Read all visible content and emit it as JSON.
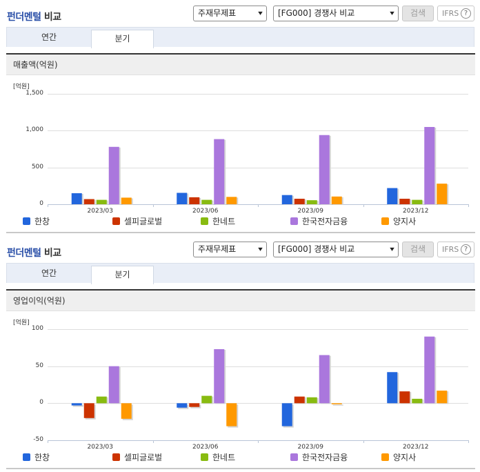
{
  "sections": [
    {
      "title_part1": "펀더멘털",
      "title_part2": "비교",
      "report_select": "주재무제표",
      "group_select": "[FG000] 경쟁사 비교",
      "search_label": "검색",
      "ifrs_label": "IFRS",
      "help_icon": "?",
      "tabs": [
        {
          "label": "연간",
          "active": false
        },
        {
          "label": "분기",
          "active": true
        }
      ],
      "metric_label": "매출액(억원)"
    },
    {
      "title_part1": "펀더멘털",
      "title_part2": "비교",
      "report_select": "주재무제표",
      "group_select": "[FG000] 경쟁사 비교",
      "search_label": "검색",
      "ifrs_label": "IFRS",
      "help_icon": "?",
      "tabs": [
        {
          "label": "연간",
          "active": false
        },
        {
          "label": "분기",
          "active": true
        }
      ],
      "metric_label": "영업이익(억원)"
    }
  ],
  "chevron": "▾",
  "colors": {
    "한창": "#2266dd",
    "셀피글로벌": "#cc3300",
    "한네트": "#88bb11",
    "한국전자금융": "#aa77dd",
    "양지사": "#ff9900"
  },
  "chart_data": [
    {
      "type": "bar",
      "title": "매출액(억원)",
      "unit_label": "[억원]",
      "xlabel": "",
      "ylabel": "억원",
      "categories": [
        "2023/03",
        "2023/06",
        "2023/09",
        "2023/12"
      ],
      "ylim": [
        0,
        1500
      ],
      "yticks": [
        0,
        500,
        1000,
        1500
      ],
      "ytick_labels": [
        "0",
        "500",
        "1,000",
        "1,500"
      ],
      "grid": true,
      "legend_position": "bottom",
      "series": [
        {
          "name": "한창",
          "color": "#2266dd",
          "values": [
            150,
            155,
            125,
            220
          ]
        },
        {
          "name": "셀피글로벌",
          "color": "#cc3300",
          "values": [
            70,
            95,
            75,
            75
          ]
        },
        {
          "name": "한네트",
          "color": "#88bb11",
          "values": [
            60,
            60,
            55,
            60
          ]
        },
        {
          "name": "한국전자금융",
          "color": "#aa77dd",
          "values": [
            780,
            885,
            940,
            1050
          ]
        },
        {
          "name": "양지사",
          "color": "#ff9900",
          "values": [
            90,
            100,
            105,
            280
          ]
        }
      ]
    },
    {
      "type": "bar",
      "title": "영업이익(억원)",
      "unit_label": "[억원]",
      "xlabel": "",
      "ylabel": "억원",
      "categories": [
        "2023/03",
        "2023/06",
        "2023/09",
        "2023/12"
      ],
      "ylim": [
        -50,
        100
      ],
      "yticks": [
        -50,
        0,
        50,
        100
      ],
      "ytick_labels": [
        "-50",
        "0",
        "50",
        "100"
      ],
      "grid": true,
      "legend_position": "bottom",
      "series": [
        {
          "name": "한창",
          "color": "#2266dd",
          "values": [
            -3,
            -6,
            -31,
            42
          ]
        },
        {
          "name": "셀피글로벌",
          "color": "#cc3300",
          "values": [
            -20,
            -5,
            9,
            16
          ]
        },
        {
          "name": "한네트",
          "color": "#88bb11",
          "values": [
            9,
            10,
            8,
            6
          ]
        },
        {
          "name": "한국전자금융",
          "color": "#aa77dd",
          "values": [
            50,
            73,
            65,
            90
          ]
        },
        {
          "name": "양지사",
          "color": "#ff9900",
          "values": [
            -21,
            -31,
            -1,
            17
          ]
        }
      ]
    }
  ]
}
